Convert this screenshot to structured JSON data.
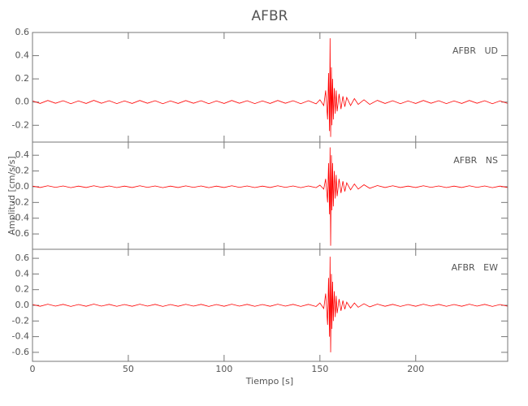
{
  "chart_data": [
    {
      "type": "line",
      "title": "AFBR",
      "annotation": "AFBR   UD",
      "xlim": [
        0,
        248
      ],
      "xticks": [
        0,
        50,
        100,
        150,
        200
      ],
      "ylim": [
        -0.345,
        0.6
      ],
      "yticks": [
        0.6,
        0.4,
        0.2,
        {
          "value": 0,
          "label": "0.0"
        },
        -0.2
      ],
      "series": [
        {
          "color": "#ff0000",
          "x": [
            0,
            4,
            8,
            12,
            16,
            20,
            24,
            28,
            32,
            36,
            40,
            44,
            48,
            52,
            56,
            60,
            64,
            68,
            72,
            76,
            80,
            84,
            88,
            92,
            96,
            100,
            104,
            108,
            112,
            116,
            120,
            124,
            128,
            132,
            136,
            140,
            144,
            148,
            150,
            152,
            153,
            154,
            154.5,
            155,
            155.3,
            155.6,
            156,
            156.3,
            156.6,
            157,
            157.5,
            158,
            158.5,
            159,
            160,
            161,
            162,
            163,
            164,
            166,
            168,
            170,
            173,
            176,
            180,
            184,
            188,
            192,
            196,
            200,
            204,
            208,
            212,
            216,
            220,
            224,
            228,
            232,
            236,
            240,
            244,
            248
          ],
          "values": [
            0.01,
            -0.012,
            0.014,
            -0.01,
            0.012,
            -0.014,
            0.01,
            -0.012,
            0.015,
            -0.01,
            0.012,
            -0.013,
            0.01,
            -0.012,
            0.014,
            -0.01,
            0.012,
            -0.014,
            0.01,
            -0.012,
            0.013,
            -0.01,
            0.012,
            -0.014,
            0.01,
            -0.012,
            0.014,
            -0.01,
            0.012,
            -0.013,
            0.01,
            -0.012,
            0.014,
            -0.01,
            0.012,
            -0.014,
            0.012,
            -0.015,
            0.02,
            -0.03,
            0.1,
            -0.15,
            0.25,
            -0.25,
            0.55,
            -0.3,
            0.3,
            -0.2,
            0.2,
            -0.15,
            0.12,
            -0.1,
            0.1,
            -0.08,
            0.07,
            -0.06,
            0.05,
            -0.04,
            0.04,
            -0.03,
            0.03,
            -0.02,
            0.02,
            -0.02,
            0.015,
            -0.012,
            0.012,
            -0.014,
            0.01,
            -0.012,
            0.014,
            -0.01,
            0.012,
            -0.013,
            0.01,
            -0.012,
            0.014,
            -0.01,
            0.012,
            -0.014,
            0.01,
            -0.012
          ]
        }
      ]
    },
    {
      "type": "line",
      "ylabel": "Amplitud [cm/s/s]",
      "annotation": "AFBR   NS",
      "xlim": [
        0,
        248
      ],
      "xticks": [
        0,
        50,
        100,
        150,
        200
      ],
      "ylim": [
        -0.795,
        0.567
      ],
      "yticks": [
        0.4,
        0.2,
        {
          "value": 0,
          "label": "0.0"
        },
        -0.2,
        -0.4,
        -0.6
      ],
      "series": [
        {
          "color": "#ff0000",
          "x": [
            0,
            4,
            8,
            12,
            16,
            20,
            24,
            28,
            32,
            36,
            40,
            44,
            48,
            52,
            56,
            60,
            64,
            68,
            72,
            76,
            80,
            84,
            88,
            92,
            96,
            100,
            104,
            108,
            112,
            116,
            120,
            124,
            128,
            132,
            136,
            140,
            144,
            148,
            150,
            152,
            153,
            154,
            154.5,
            155,
            155.3,
            155.6,
            156,
            156.3,
            156.6,
            157,
            157.5,
            158,
            158.5,
            159,
            160,
            161,
            162,
            163,
            164,
            166,
            168,
            170,
            173,
            176,
            180,
            184,
            188,
            192,
            196,
            200,
            204,
            208,
            212,
            216,
            220,
            224,
            228,
            232,
            236,
            240,
            244,
            248
          ],
          "values": [
            0.008,
            -0.01,
            0.012,
            -0.008,
            0.01,
            -0.012,
            0.008,
            -0.01,
            0.012,
            -0.008,
            0.01,
            -0.011,
            0.008,
            -0.01,
            0.012,
            -0.008,
            0.01,
            -0.012,
            0.008,
            -0.01,
            0.011,
            -0.008,
            0.01,
            -0.012,
            0.008,
            -0.01,
            0.012,
            -0.008,
            0.01,
            -0.011,
            0.008,
            -0.01,
            0.012,
            -0.008,
            0.01,
            -0.012,
            0.01,
            -0.012,
            0.02,
            -0.03,
            0.1,
            -0.2,
            0.3,
            -0.35,
            0.5,
            -0.75,
            0.4,
            -0.3,
            0.3,
            -0.25,
            0.2,
            -0.15,
            0.15,
            -0.12,
            0.1,
            -0.08,
            0.07,
            -0.06,
            0.05,
            -0.04,
            0.035,
            -0.03,
            0.025,
            -0.02,
            0.015,
            -0.01,
            0.012,
            -0.01,
            0.008,
            -0.01,
            0.012,
            -0.008,
            0.01,
            -0.011,
            0.008,
            -0.01,
            0.012,
            -0.008,
            0.01,
            -0.012,
            0.008,
            -0.01
          ]
        }
      ]
    },
    {
      "type": "line",
      "xlabel": "Tiempo [s]",
      "annotation": "AFBR   EW",
      "xlim": [
        0,
        248
      ],
      "xticks": [
        0,
        50,
        100,
        150,
        200
      ],
      "ylim": [
        -0.715,
        0.715
      ],
      "yticks": [
        0.6,
        0.4,
        0.2,
        {
          "value": 0,
          "label": "0.0"
        },
        -0.2,
        -0.4,
        -0.6
      ],
      "series": [
        {
          "color": "#ff0000",
          "x": [
            0,
            4,
            8,
            12,
            16,
            20,
            24,
            28,
            32,
            36,
            40,
            44,
            48,
            52,
            56,
            60,
            64,
            68,
            72,
            76,
            80,
            84,
            88,
            92,
            96,
            100,
            104,
            108,
            112,
            116,
            120,
            124,
            128,
            132,
            136,
            140,
            144,
            148,
            150,
            152,
            153,
            154,
            154.5,
            155,
            155.3,
            155.6,
            156,
            156.3,
            156.6,
            157,
            157.5,
            158,
            158.5,
            159,
            160,
            161,
            162,
            163,
            164,
            166,
            168,
            170,
            173,
            176,
            180,
            184,
            188,
            192,
            196,
            200,
            204,
            208,
            212,
            216,
            220,
            224,
            228,
            232,
            236,
            240,
            244,
            248
          ],
          "values": [
            0.01,
            -0.012,
            0.014,
            -0.01,
            0.012,
            -0.014,
            0.01,
            -0.012,
            0.015,
            -0.01,
            0.012,
            -0.013,
            0.01,
            -0.012,
            0.014,
            -0.01,
            0.012,
            -0.014,
            0.01,
            -0.012,
            0.013,
            -0.01,
            0.012,
            -0.014,
            0.01,
            -0.012,
            0.014,
            -0.01,
            0.012,
            -0.013,
            0.01,
            -0.012,
            0.014,
            -0.01,
            0.012,
            -0.014,
            0.012,
            -0.015,
            0.03,
            -0.04,
            0.15,
            -0.25,
            0.35,
            -0.4,
            0.62,
            -0.6,
            0.4,
            -0.3,
            0.3,
            -0.2,
            0.18,
            -0.15,
            0.12,
            -0.1,
            0.08,
            -0.07,
            0.06,
            -0.05,
            0.04,
            -0.035,
            0.03,
            -0.025,
            0.02,
            -0.02,
            0.015,
            -0.012,
            0.012,
            -0.014,
            0.01,
            -0.012,
            0.014,
            -0.01,
            0.012,
            -0.013,
            0.01,
            -0.012,
            0.014,
            -0.01,
            0.012,
            -0.014,
            0.01,
            -0.012
          ]
        }
      ]
    }
  ]
}
